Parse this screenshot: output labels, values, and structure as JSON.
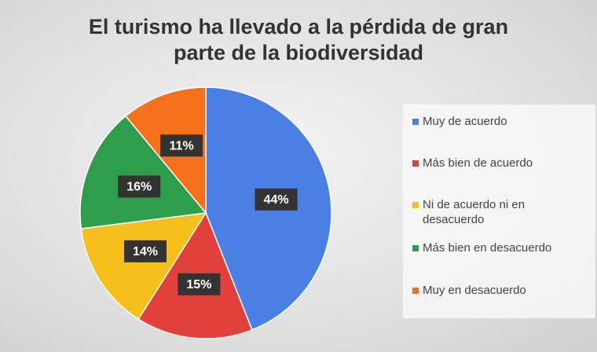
{
  "chart_data": {
    "type": "pie",
    "title": "El turismo ha llevado a la pérdida de gran parte de la biodiversidad",
    "categories": [
      "Muy de acuerdo",
      "Más bien de acuerdo",
      "Ni de acuerdo ni en desacuerdo",
      "Más bien en desacuerdo",
      "Muy en desacuerdo"
    ],
    "values": [
      44,
      15,
      14,
      16,
      11
    ],
    "value_labels": [
      "44%",
      "15%",
      "14%",
      "16%",
      "11%"
    ],
    "colors": [
      "#4a7fe3",
      "#e2403a",
      "#f6bf1c",
      "#2f9e4c",
      "#f5711c"
    ],
    "legend": "right"
  }
}
